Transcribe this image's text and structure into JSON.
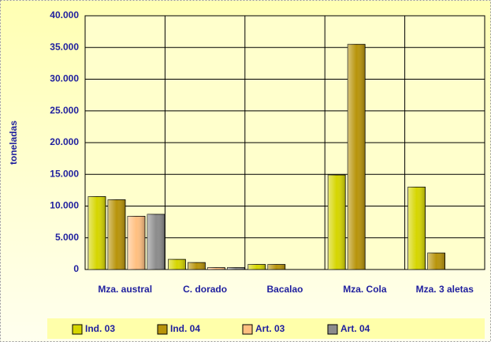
{
  "chart_data": {
    "type": "bar",
    "y_label": "toneladas",
    "categories": [
      "Mza. austral",
      "C. dorado",
      "Bacalao",
      "Mza. Cola",
      "Mza. 3 aletas"
    ],
    "series": [
      {
        "name": "Ind. 03",
        "color": "#d6d600",
        "values": [
          11500,
          1600,
          800,
          14900,
          13000
        ]
      },
      {
        "name": "Ind. 04",
        "color": "#b8940a",
        "values": [
          11000,
          1100,
          800,
          35500,
          2600
        ]
      },
      {
        "name": "Art. 03",
        "color": "#ffbf80",
        "values": [
          8400,
          300,
          0,
          0,
          0
        ]
      },
      {
        "name": "Art. 04",
        "color": "#8c8c8c",
        "values": [
          8700,
          300,
          0,
          0,
          0
        ]
      }
    ],
    "ylim": [
      0,
      40000
    ],
    "yticks": [
      0,
      {
        "value": 5000,
        "label": "5.000"
      },
      {
        "value": 10000,
        "label": "10.000"
      },
      {
        "value": 15000,
        "label": "15.000"
      },
      {
        "value": 20000,
        "label": "20.000"
      },
      {
        "value": 25000,
        "label": "25.000"
      },
      {
        "value": 30000,
        "label": "30.000"
      },
      {
        "value": 35000,
        "label": "35.000"
      },
      {
        "value": 40000,
        "label": "40.000"
      }
    ],
    "grid": true,
    "legend": "bottom"
  }
}
